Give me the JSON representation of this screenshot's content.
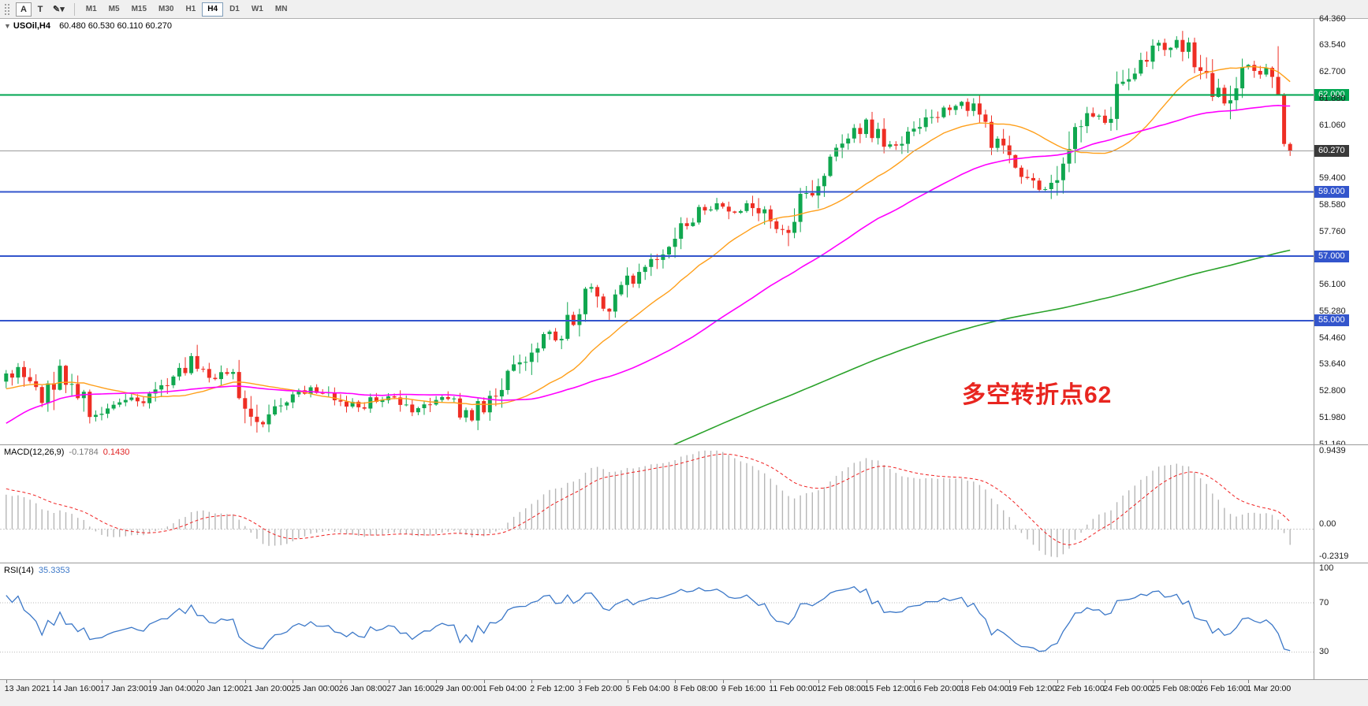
{
  "toolbar": {
    "tools": [
      {
        "id": "annotate-tool",
        "label": "A",
        "boxed": true
      },
      {
        "id": "text-tool",
        "label": "T",
        "boxed": false
      },
      {
        "id": "shapes-tool",
        "label": "✎",
        "boxed": false,
        "dropdown": "▾"
      }
    ],
    "timeframes": [
      "M1",
      "M5",
      "M15",
      "M30",
      "H1",
      "H4",
      "D1",
      "W1",
      "MN"
    ],
    "active_timeframe": "H4"
  },
  "header": {
    "dropdown_icon": "▼",
    "symbol_label": "USOil,H4",
    "ohlc_text": "60.480 60.530 60.110 60.270"
  },
  "annotation": {
    "text": "多空转折点62",
    "color": "#e8251f"
  },
  "price_axis": {
    "labels": [
      "64.360",
      "63.540",
      "62.700",
      "61.880",
      "61.060",
      "59.400",
      "58.580",
      "57.760",
      "56.100",
      "55.280",
      "54.460",
      "53.640",
      "52.800",
      "51.980",
      "51.160"
    ]
  },
  "levels": [
    {
      "id": "hline-62000",
      "price": 62.0,
      "label": "62.000",
      "color": "#00a651",
      "width": 2
    },
    {
      "id": "bid-line",
      "price": 60.27,
      "label": "60.270",
      "color": "#9b9b9b",
      "badge_color": "#3a3a3a",
      "width": 1
    },
    {
      "id": "hline-59000",
      "price": 59.0,
      "label": "59.000",
      "color": "#3355cc",
      "width": 2
    },
    {
      "id": "hline-57000",
      "price": 57.0,
      "label": "57.000",
      "color": "#3355cc",
      "width": 2
    },
    {
      "id": "hline-55000",
      "price": 55.0,
      "label": "55.000",
      "color": "#3355cc",
      "width": 2
    }
  ],
  "macd": {
    "name": "MACD(12,26,9)",
    "main_value": "-0.1784",
    "signal_value": "0.1430",
    "axis_labels": [
      "0.9439",
      "0.00",
      "-0.2319"
    ],
    "hist_color": "#b6b6b6",
    "signal_color": "#f02020"
  },
  "rsi": {
    "name": "RSI(14)",
    "value": "35.3353",
    "axis_labels": [
      "100",
      "70",
      "30"
    ],
    "levels": [
      70,
      30
    ],
    "line_color": "#3c78c8",
    "scale": [
      8,
      102
    ]
  },
  "time_axis": {
    "labels": [
      "13 Jan 2021",
      "14 Jan 16:00",
      "17 Jan 23:00",
      "19 Jan 04:00",
      "20 Jan 12:00",
      "21 Jan 20:00",
      "25 Jan 00:00",
      "26 Jan 08:00",
      "27 Jan 16:00",
      "29 Jan 00:00",
      "1 Feb 04:00",
      "2 Feb 12:00",
      "3 Feb 20:00",
      "5 Feb 04:00",
      "8 Feb 08:00",
      "9 Feb 16:00",
      "11 Feb 00:00",
      "12 Feb 08:00",
      "15 Feb 12:00",
      "16 Feb 20:00",
      "18 Feb 04:00",
      "19 Feb 12:00",
      "22 Feb 16:00",
      "24 Feb 00:00",
      "25 Feb 08:00",
      "26 Feb 16:00",
      "1 Mar 20:00"
    ]
  },
  "chart_data": {
    "type": "candlestick",
    "symbol": "USOil",
    "timeframe": "H4",
    "title": "USOil,H4 60.480 60.530 60.110 60.270",
    "price_range": [
      51.16,
      64.36
    ],
    "visible_candles": 216,
    "pre_candles": 160,
    "label_every": 8,
    "seed": 20210301,
    "bull_color": "#10a74f",
    "bear_color": "#ee2e24",
    "pre_anchors": [
      [
        0,
        39.0
      ],
      [
        60,
        41.0
      ],
      [
        95,
        43.5
      ],
      [
        110,
        47.0
      ],
      [
        122,
        51.5
      ],
      [
        132,
        52.3
      ],
      [
        145,
        52.7
      ],
      [
        159,
        53.15
      ]
    ],
    "anchors": [
      [
        0,
        53.2
      ],
      [
        2,
        53.45
      ],
      [
        4,
        52.9
      ],
      [
        6,
        52.55
      ],
      [
        8,
        53.0
      ],
      [
        9,
        53.7
      ],
      [
        11,
        53.1
      ],
      [
        13,
        52.5
      ],
      [
        15,
        52.05
      ],
      [
        17,
        52.25
      ],
      [
        20,
        52.45
      ],
      [
        23,
        52.6
      ],
      [
        26,
        52.95
      ],
      [
        29,
        53.4
      ],
      [
        31,
        53.8
      ],
      [
        33,
        53.3
      ],
      [
        35,
        53.15
      ],
      [
        37,
        53.35
      ],
      [
        39,
        52.95
      ],
      [
        41,
        52.3
      ],
      [
        43,
        51.85
      ],
      [
        45,
        52.25
      ],
      [
        48,
        52.6
      ],
      [
        51,
        52.85
      ],
      [
        54,
        52.7
      ],
      [
        57,
        52.45
      ],
      [
        60,
        52.3
      ],
      [
        62,
        52.6
      ],
      [
        64,
        52.7
      ],
      [
        66,
        52.45
      ],
      [
        68,
        52.15
      ],
      [
        70,
        52.3
      ],
      [
        72,
        52.5
      ],
      [
        74,
        52.55
      ],
      [
        76,
        52.2
      ],
      [
        78,
        52.05
      ],
      [
        80,
        52.45
      ],
      [
        82,
        52.9
      ],
      [
        84,
        53.35
      ],
      [
        86,
        53.65
      ],
      [
        88,
        54.15
      ],
      [
        90,
        54.75
      ],
      [
        92,
        54.5
      ],
      [
        94,
        54.9
      ],
      [
        96,
        55.45
      ],
      [
        98,
        55.95
      ],
      [
        100,
        55.35
      ],
      [
        102,
        55.7
      ],
      [
        104,
        56.2
      ],
      [
        106,
        56.6
      ],
      [
        108,
        56.9
      ],
      [
        110,
        57.25
      ],
      [
        112,
        57.7
      ],
      [
        114,
        58.05
      ],
      [
        116,
        58.35
      ],
      [
        118,
        58.55
      ],
      [
        120,
        58.65
      ],
      [
        122,
        58.35
      ],
      [
        124,
        58.7
      ],
      [
        126,
        58.45
      ],
      [
        128,
        58.0
      ],
      [
        130,
        57.75
      ],
      [
        132,
        58.35
      ],
      [
        134,
        58.85
      ],
      [
        136,
        59.45
      ],
      [
        138,
        59.95
      ],
      [
        140,
        60.45
      ],
      [
        142,
        60.85
      ],
      [
        144,
        61.2
      ],
      [
        146,
        60.75
      ],
      [
        148,
        60.35
      ],
      [
        150,
        60.5
      ],
      [
        152,
        60.95
      ],
      [
        154,
        61.25
      ],
      [
        156,
        61.45
      ],
      [
        158,
        61.6
      ],
      [
        160,
        61.7
      ],
      [
        162,
        61.55
      ],
      [
        164,
        61.1
      ],
      [
        166,
        60.45
      ],
      [
        168,
        59.9
      ],
      [
        170,
        59.5
      ],
      [
        172,
        59.15
      ],
      [
        174,
        59.05
      ],
      [
        176,
        59.45
      ],
      [
        178,
        60.15
      ],
      [
        180,
        60.95
      ],
      [
        182,
        61.5
      ],
      [
        184,
        61.35
      ],
      [
        186,
        62.0
      ],
      [
        188,
        62.55
      ],
      [
        190,
        63.05
      ],
      [
        192,
        63.35
      ],
      [
        194,
        63.55
      ],
      [
        196,
        63.75
      ],
      [
        198,
        63.35
      ],
      [
        200,
        62.85
      ],
      [
        202,
        62.3
      ],
      [
        204,
        61.7
      ],
      [
        206,
        62.35
      ],
      [
        208,
        62.8
      ],
      [
        210,
        62.55
      ],
      [
        211,
        62.75
      ],
      [
        212,
        62.4
      ],
      [
        213,
        62.0
      ],
      [
        214,
        60.8
      ],
      [
        215,
        60.27
      ]
    ],
    "final_candles": [
      {
        "o": 62.0,
        "h": 62.06,
        "l": 60.4,
        "c": 60.48
      },
      {
        "o": 60.48,
        "h": 60.53,
        "l": 60.11,
        "c": 60.27
      }
    ],
    "moving_averages": [
      {
        "id": "ma-fast",
        "period": 20,
        "color": "#ff9f1a",
        "width": 1.4
      },
      {
        "id": "ma-mid",
        "period": 50,
        "color": "#ff00ff",
        "width": 1.6
      },
      {
        "id": "ma-slow",
        "period": 200,
        "color": "#2aa22a",
        "width": 1.6
      }
    ]
  }
}
